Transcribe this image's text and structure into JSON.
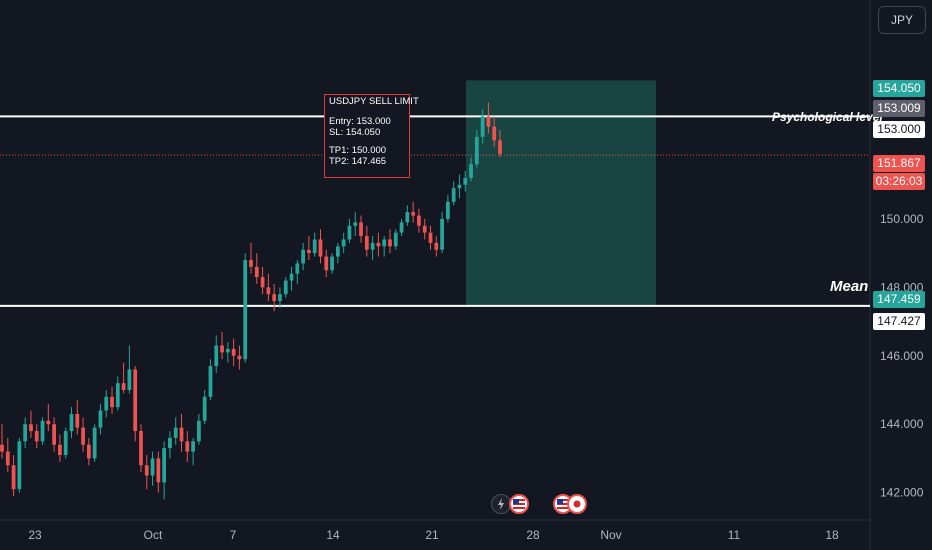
{
  "currency": "JPY",
  "note": {
    "title": "USDJPY SELL LIMIT",
    "entry": "Entry: 153.000",
    "sl": "SL: 154.050",
    "tp1": "TP1: 150.000",
    "tp2": "TP2: 147.465"
  },
  "levels": {
    "psychological": {
      "label": "Psychological level",
      "value": 153.0
    },
    "mean": {
      "label": "Mean",
      "value": 147.459
    }
  },
  "price_tags": [
    {
      "text": "154.050",
      "value": 154.05,
      "style": "green"
    },
    {
      "text": "153.009",
      "value": 153.009,
      "style": "grey"
    },
    {
      "text": "153.000",
      "value": 153.0,
      "style": "white"
    },
    {
      "text": "151.867",
      "value": 151.867,
      "style": "red"
    },
    {
      "text": "03:26:03",
      "style": "red-sub"
    },
    {
      "text": "147.459",
      "value": 147.459,
      "style": "green"
    },
    {
      "text": "147.427",
      "value": 147.427,
      "style": "white"
    }
  ],
  "colors": {
    "background": "#131722",
    "up": "#26a69a",
    "down": "#ef5350",
    "zone": "#1a4d47",
    "level_line": "#ffffff",
    "current_line": "#ef5350"
  },
  "chart_data": {
    "type": "candlestick",
    "x_ticks": [
      "23",
      "Oct",
      "7",
      "14",
      "21",
      "28",
      "Nov",
      "11",
      "18"
    ],
    "y_ticks": [
      "142.000",
      "144.000",
      "146.000",
      "148.000",
      "150.000"
    ],
    "y_tick_values": [
      142,
      144,
      146,
      148,
      150
    ],
    "ylim": [
      141.2,
      156.4
    ],
    "current_price": 151.867,
    "trade_zone": {
      "top": 154.05,
      "bottom": 147.459
    },
    "candles_ohlc": [
      [
        143.4,
        144.0,
        143.0,
        143.2
      ],
      [
        143.2,
        143.6,
        142.6,
        142.8
      ],
      [
        142.8,
        143.1,
        141.9,
        142.1
      ],
      [
        142.1,
        143.6,
        142.0,
        143.5
      ],
      [
        143.5,
        144.2,
        143.3,
        144.0
      ],
      [
        144.0,
        144.4,
        143.6,
        143.8
      ],
      [
        143.8,
        144.0,
        143.3,
        143.5
      ],
      [
        143.5,
        144.2,
        143.4,
        144.1
      ],
      [
        144.1,
        144.6,
        143.8,
        144.0
      ],
      [
        144.0,
        144.2,
        143.2,
        143.4
      ],
      [
        143.4,
        143.7,
        142.9,
        143.1
      ],
      [
        143.1,
        143.9,
        143.0,
        143.8
      ],
      [
        143.8,
        144.5,
        143.6,
        144.3
      ],
      [
        144.3,
        144.7,
        143.7,
        143.9
      ],
      [
        143.9,
        144.2,
        143.2,
        143.4
      ],
      [
        143.4,
        143.6,
        142.8,
        143.0
      ],
      [
        143.0,
        144.0,
        142.9,
        143.9
      ],
      [
        143.9,
        144.6,
        143.7,
        144.4
      ],
      [
        144.4,
        145.0,
        144.2,
        144.8
      ],
      [
        144.8,
        145.1,
        144.3,
        144.5
      ],
      [
        144.5,
        145.4,
        144.4,
        145.2
      ],
      [
        145.2,
        145.8,
        144.9,
        145.0
      ],
      [
        145.0,
        146.3,
        144.9,
        145.6
      ],
      [
        145.6,
        145.7,
        143.5,
        143.8
      ],
      [
        143.8,
        144.0,
        142.6,
        142.8
      ],
      [
        142.8,
        143.1,
        142.1,
        142.5
      ],
      [
        142.5,
        143.2,
        142.2,
        143.0
      ],
      [
        143.0,
        143.2,
        142.0,
        142.3
      ],
      [
        142.3,
        143.5,
        141.8,
        143.3
      ],
      [
        143.3,
        143.8,
        143.0,
        143.6
      ],
      [
        143.6,
        144.2,
        143.4,
        143.9
      ],
      [
        143.9,
        144.3,
        143.2,
        143.5
      ],
      [
        143.5,
        143.8,
        142.9,
        143.2
      ],
      [
        143.2,
        143.6,
        142.8,
        143.5
      ],
      [
        143.5,
        144.3,
        143.4,
        144.1
      ],
      [
        144.1,
        145.0,
        144.0,
        144.8
      ],
      [
        144.8,
        145.9,
        144.7,
        145.7
      ],
      [
        145.7,
        146.6,
        145.5,
        146.3
      ],
      [
        146.3,
        146.7,
        145.9,
        146.1
      ],
      [
        146.1,
        146.4,
        145.8,
        146.2
      ],
      [
        146.2,
        146.5,
        145.7,
        146.0
      ],
      [
        146.0,
        146.3,
        145.6,
        145.9
      ],
      [
        145.9,
        149.0,
        145.8,
        148.8
      ],
      [
        148.8,
        149.3,
        148.4,
        148.6
      ],
      [
        148.6,
        149.0,
        148.1,
        148.3
      ],
      [
        148.3,
        148.6,
        147.8,
        148.0
      ],
      [
        148.0,
        148.4,
        147.6,
        147.8
      ],
      [
        147.8,
        148.1,
        147.3,
        147.6
      ],
      [
        147.6,
        148.0,
        147.4,
        147.8
      ],
      [
        147.8,
        148.3,
        147.7,
        148.2
      ],
      [
        148.2,
        148.6,
        147.9,
        148.4
      ],
      [
        148.4,
        148.8,
        148.1,
        148.7
      ],
      [
        148.7,
        149.3,
        148.5,
        149.1
      ],
      [
        149.1,
        149.5,
        148.8,
        149.0
      ],
      [
        149.0,
        149.6,
        148.9,
        149.4
      ],
      [
        149.4,
        149.7,
        148.7,
        148.9
      ],
      [
        148.9,
        149.1,
        148.3,
        148.5
      ],
      [
        148.5,
        149.0,
        148.4,
        148.9
      ],
      [
        148.9,
        149.3,
        148.7,
        149.2
      ],
      [
        149.2,
        149.6,
        149.0,
        149.4
      ],
      [
        149.4,
        150.0,
        149.3,
        149.8
      ],
      [
        149.8,
        150.2,
        149.5,
        149.9
      ],
      [
        149.9,
        150.1,
        149.3,
        149.5
      ],
      [
        149.5,
        149.8,
        148.9,
        149.1
      ],
      [
        149.1,
        149.5,
        148.8,
        149.3
      ],
      [
        149.3,
        149.6,
        148.9,
        149.2
      ],
      [
        149.2,
        149.5,
        148.9,
        149.4
      ],
      [
        149.4,
        149.7,
        149.0,
        149.2
      ],
      [
        149.2,
        149.7,
        149.1,
        149.6
      ],
      [
        149.6,
        150.0,
        149.5,
        149.9
      ],
      [
        149.9,
        150.4,
        149.8,
        150.2
      ],
      [
        150.2,
        150.5,
        149.9,
        150.1
      ],
      [
        150.1,
        150.3,
        149.6,
        149.8
      ],
      [
        149.8,
        150.0,
        149.4,
        149.6
      ],
      [
        149.6,
        149.8,
        149.1,
        149.3
      ],
      [
        149.3,
        149.5,
        148.9,
        149.1
      ],
      [
        149.1,
        150.2,
        149.0,
        150.0
      ],
      [
        150.0,
        150.7,
        149.9,
        150.5
      ],
      [
        150.5,
        151.1,
        150.4,
        150.9
      ],
      [
        150.9,
        151.3,
        150.6,
        151.0
      ],
      [
        151.0,
        151.4,
        150.8,
        151.2
      ],
      [
        151.2,
        151.8,
        151.1,
        151.6
      ],
      [
        151.6,
        152.6,
        151.5,
        152.4
      ],
      [
        152.4,
        153.2,
        152.2,
        153.0
      ],
      [
        153.0,
        153.4,
        152.5,
        152.7
      ],
      [
        152.7,
        153.0,
        152.1,
        152.3
      ],
      [
        152.3,
        152.6,
        151.8,
        151.9
      ]
    ]
  }
}
